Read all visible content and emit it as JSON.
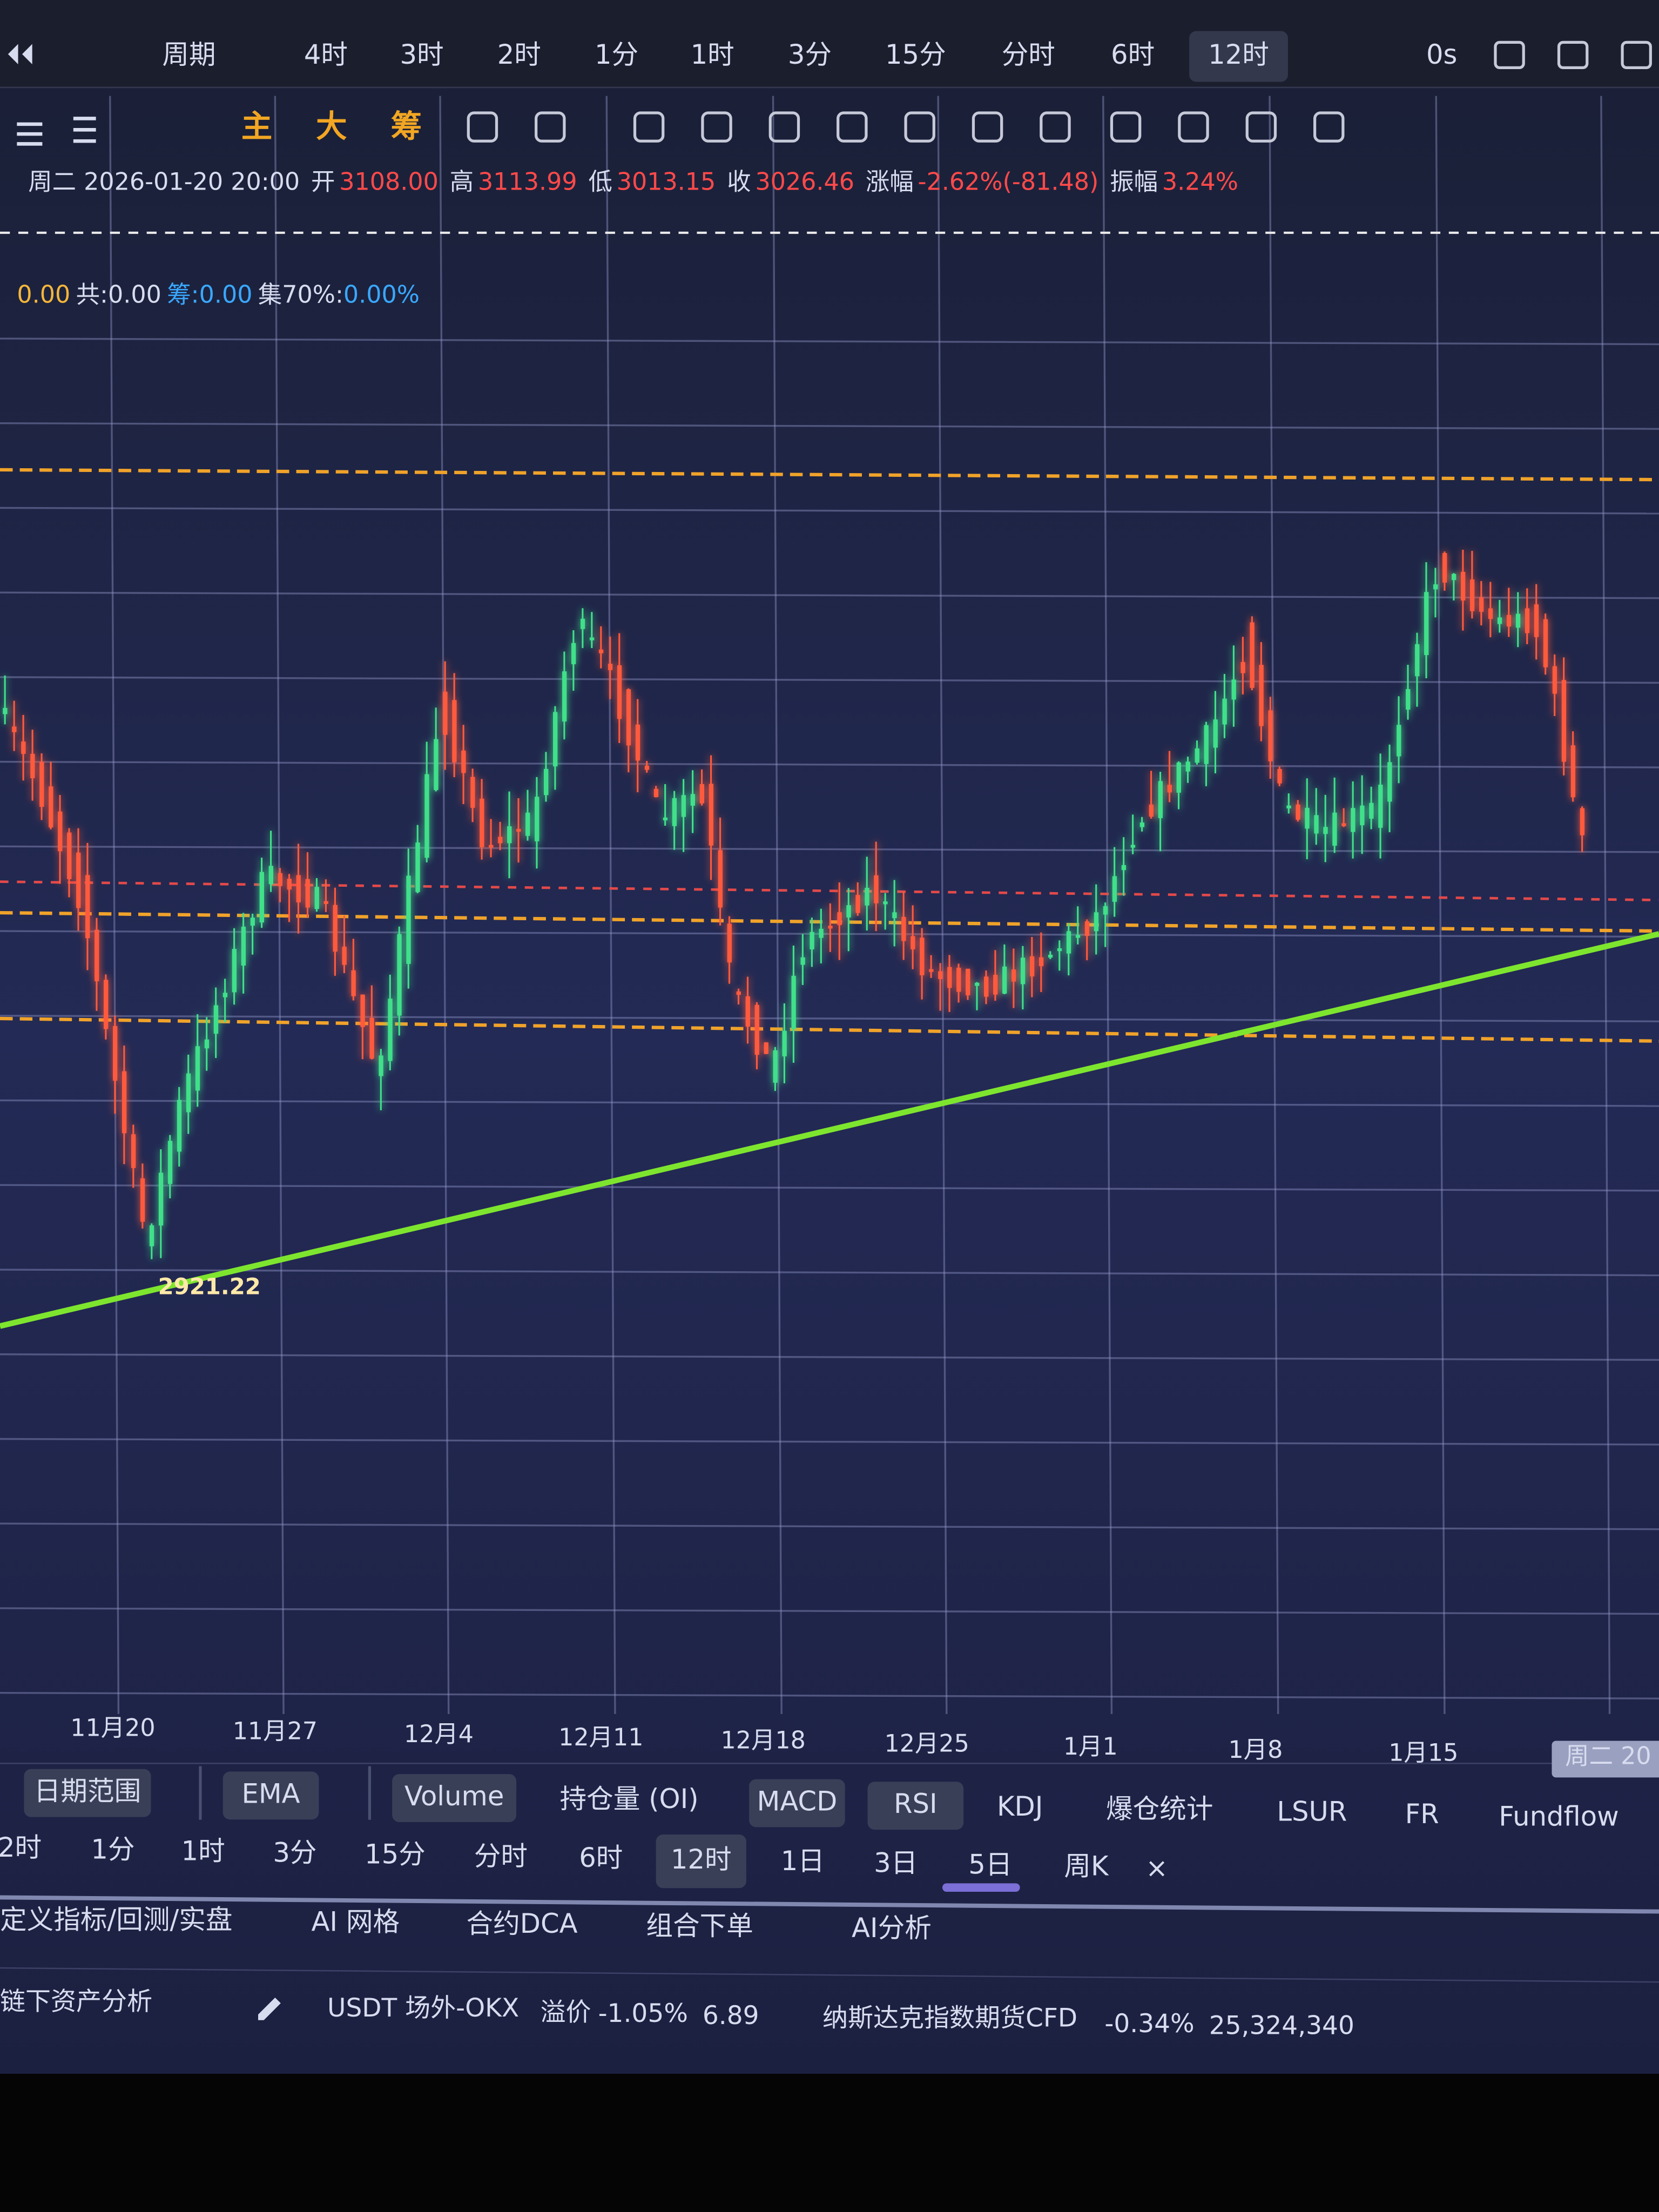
{
  "top_bar": {
    "period_label": "周期",
    "periods": [
      {
        "label": "4时"
      },
      {
        "label": "3时"
      },
      {
        "label": "2时"
      },
      {
        "label": "1分"
      },
      {
        "label": "1时"
      },
      {
        "label": "3分"
      },
      {
        "label": "15分"
      },
      {
        "label": "分时"
      },
      {
        "label": "6时"
      },
      {
        "label": "12时",
        "active": true
      }
    ],
    "countdown": "0s"
  },
  "toolbar": {
    "buttons": [
      "主",
      "大",
      "筹"
    ]
  },
  "ohlc": {
    "time": "周二 2026-01-20 20:00",
    "open_label": "开",
    "open": "3108.00",
    "high_label": "高",
    "high": "3113.99",
    "low_label": "低",
    "low": "3013.15",
    "close_label": "收",
    "close": "3026.46",
    "change_label": "涨幅",
    "change": "-2.62%(-81.48)",
    "amplitude_label": "振幅",
    "amplitude": "3.24%"
  },
  "stats": {
    "sell": "0.00",
    "total": "共:0.00",
    "chips": "筹:0.00",
    "concentration_label": "集70%:",
    "concentration": "0.00%"
  },
  "chart": {
    "low_annotation": "2921.22",
    "x_labels": [
      "11月20",
      "11月27",
      "12月4",
      "12月11",
      "12月18",
      "12月25",
      "1月1",
      "1月8",
      "1月15",
      "周二 20"
    ]
  },
  "indicators": [
    {
      "label": "日期范围",
      "on": true
    },
    {
      "label": "EMA",
      "on": true
    },
    {
      "label": "Volume",
      "on": true
    },
    {
      "label": "持仓量 (OI)"
    },
    {
      "label": "MACD",
      "on": true
    },
    {
      "label": "RSI",
      "on": true
    },
    {
      "label": "KDJ"
    },
    {
      "label": "爆仓统计"
    },
    {
      "label": "LSUR"
    },
    {
      "label": "FR"
    },
    {
      "label": "Fundflow"
    }
  ],
  "periods2": [
    {
      "label": "2时"
    },
    {
      "label": "1分"
    },
    {
      "label": "1时"
    },
    {
      "label": "3分"
    },
    {
      "label": "15分"
    },
    {
      "label": "分时"
    },
    {
      "label": "6时"
    },
    {
      "label": "12时",
      "active": true
    },
    {
      "label": "1日"
    },
    {
      "label": "3日"
    },
    {
      "label": "5日"
    },
    {
      "label": "周K"
    },
    {
      "label": "×"
    }
  ],
  "tools": [
    "定义指标/回测/实盘",
    "AI 网格",
    "合约DCA",
    "组合下单",
    "AI分析"
  ],
  "ticker": {
    "offchain": "链下资产分析",
    "usdt_name": "USDT 场外-OKX",
    "premium_label": "溢价",
    "premium": "-1.05%",
    "usdt_price": "6.89",
    "nasdaq_name": "纳斯达克指数期货CFD",
    "nasdaq_change": "-0.34%",
    "nasdaq_price": "25,324,340"
  }
}
